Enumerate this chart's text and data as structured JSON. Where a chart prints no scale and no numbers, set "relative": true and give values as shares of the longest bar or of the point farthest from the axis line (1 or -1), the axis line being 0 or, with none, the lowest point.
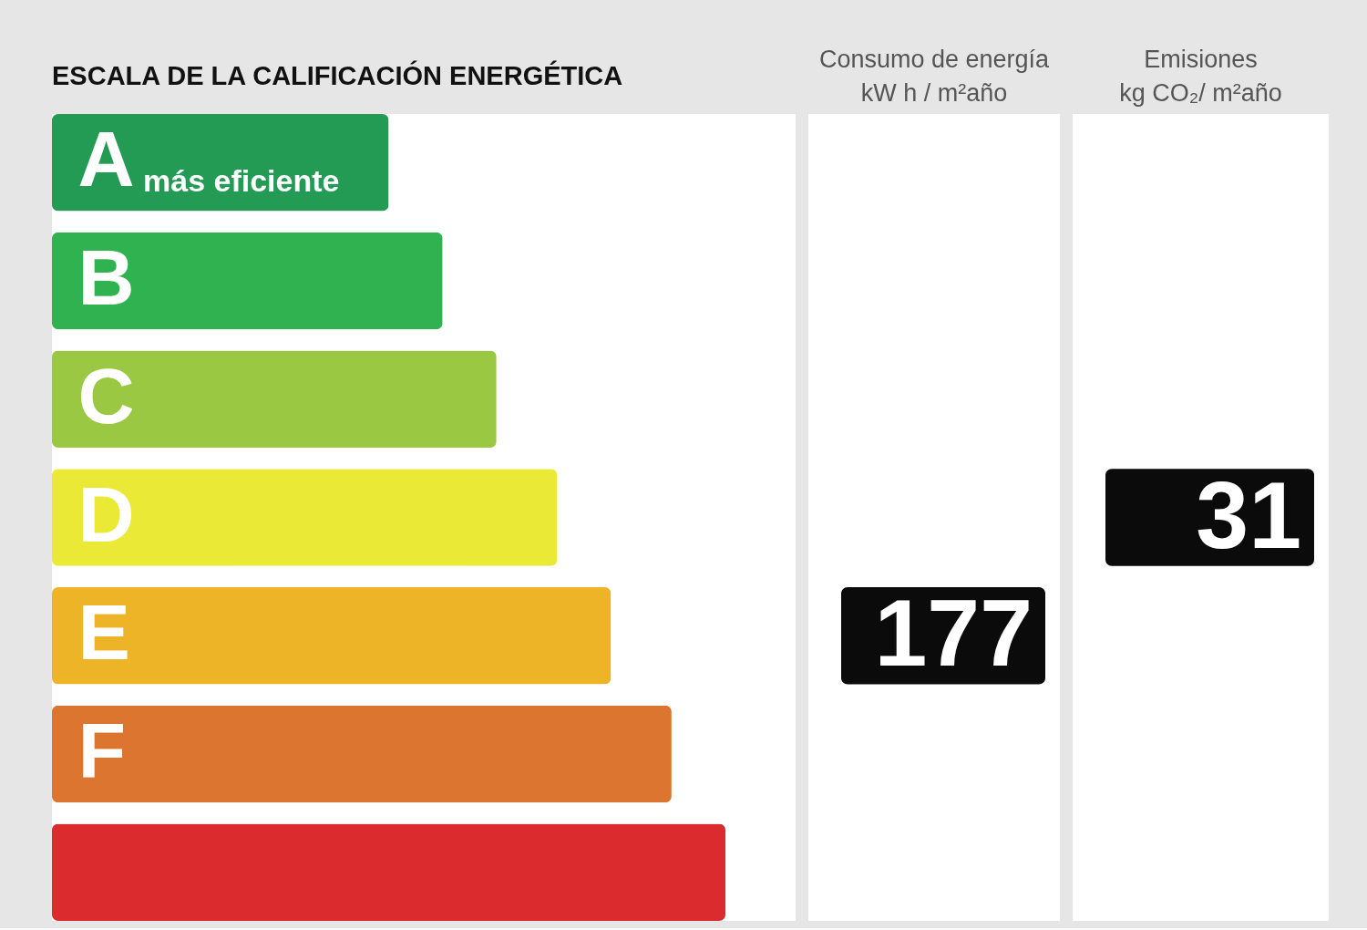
{
  "chart_data": [
    {
      "type": "bar",
      "orientation": "horizontal",
      "relative": true,
      "title": "ESCALA DE LA CALIFICACIÓN ENERGÉTICA",
      "categories": [
        "A",
        "B",
        "C",
        "D",
        "E",
        "F",
        null
      ],
      "values": [
        0.5,
        0.58,
        0.66,
        0.75,
        0.83,
        0.92,
        1.0
      ],
      "colors": [
        "#239b55",
        "#2fb24f",
        "#9ac843",
        "#e9e936",
        "#eeb427",
        "#dc7530",
        "#dc2b2e"
      ],
      "annotations": [
        {
          "text": "más eficiente",
          "y": "A"
        }
      ]
    },
    {
      "type": "other",
      "title": "Consumo de energía",
      "subtitle": "kW h / m²año",
      "categories": [
        null,
        null,
        null,
        null,
        null,
        null,
        null
      ],
      "values": [
        null,
        null,
        null,
        null,
        177,
        null,
        null
      ],
      "color": "#0b0b0b",
      "data_labels": true
    },
    {
      "type": "other",
      "title": "Emisiones",
      "subtitle": "kg CO₂/ m²año",
      "categories": [
        null,
        null,
        null,
        null,
        null,
        null,
        null
      ],
      "values": [
        null,
        null,
        null,
        31,
        null,
        null,
        null
      ],
      "color": "#0b0b0b",
      "data_labels": true
    }
  ]
}
